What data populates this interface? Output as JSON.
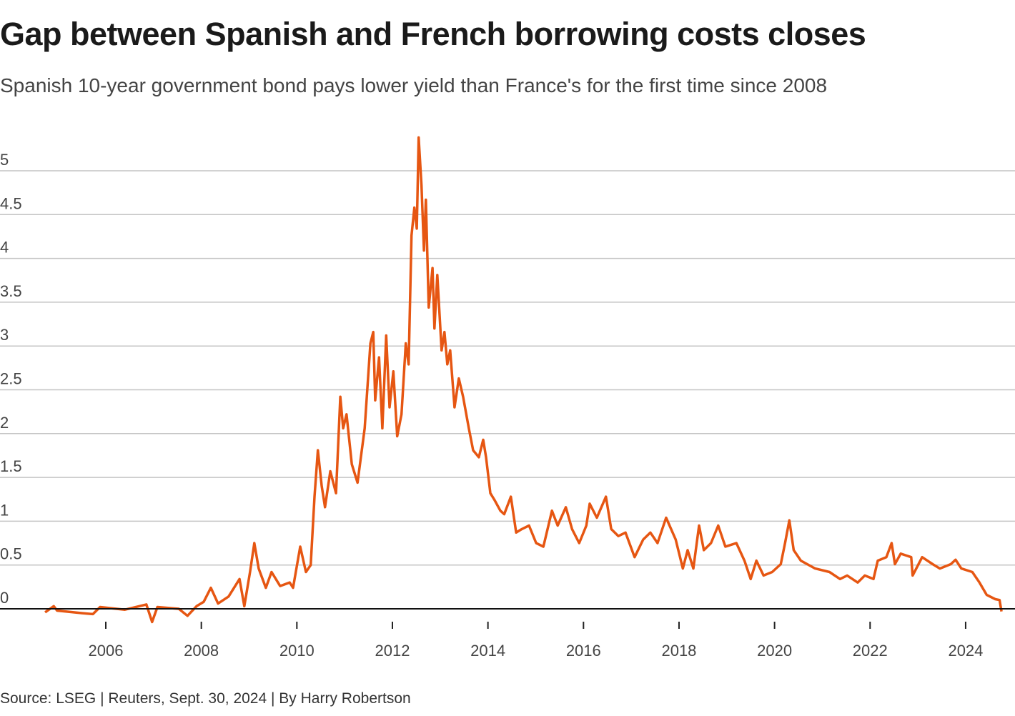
{
  "chart_data": {
    "type": "line",
    "title": "Gap between Spanish and French borrowing costs closes",
    "subtitle": "Spanish 10-year government bond pays lower yield than France's for the first time since 2008",
    "source": "Source: LSEG | Reuters, Sept. 30, 2024 | By Harry Robertson",
    "xlabel": "",
    "ylabel": "",
    "xlim": [
      2004.7,
      2024.8
    ],
    "ylim": [
      0,
      5.4
    ],
    "grid": true,
    "line_color": "#e65612",
    "y_ticks": [
      0,
      0.5,
      1,
      1.5,
      2,
      2.5,
      3,
      3.5,
      4,
      4.5,
      5
    ],
    "y_tick_labels": [
      "0",
      "0.5",
      "1",
      "1.5",
      "2",
      "2.5",
      "3",
      "3.5",
      "4",
      "4.5",
      "5"
    ],
    "x_ticks": [
      2006,
      2008,
      2010,
      2012,
      2014,
      2016,
      2018,
      2020,
      2022,
      2024
    ],
    "x_tick_labels": [
      "2006",
      "2008",
      "2010",
      "2012",
      "2014",
      "2016",
      "2018",
      "2020",
      "2022",
      "2024"
    ],
    "series": [
      {
        "points": [
          [
            2004.73,
            -0.04
          ],
          [
            2004.91,
            0.03
          ],
          [
            2004.98,
            -0.02
          ],
          [
            2005.51,
            -0.05
          ],
          [
            2005.73,
            -0.06
          ],
          [
            2005.88,
            0.02
          ],
          [
            2006.4,
            -0.01
          ],
          [
            2006.85,
            0.05
          ],
          [
            2006.97,
            -0.15
          ],
          [
            2007.08,
            0.02
          ],
          [
            2007.53,
            0
          ],
          [
            2007.71,
            -0.08
          ],
          [
            2007.9,
            0.03
          ],
          [
            2008.05,
            0.08
          ],
          [
            2008.2,
            0.24
          ],
          [
            2008.35,
            0.06
          ],
          [
            2008.57,
            0.14
          ],
          [
            2008.8,
            0.34
          ],
          [
            2008.9,
            0.03
          ],
          [
            2009.02,
            0.42
          ],
          [
            2009.11,
            0.75
          ],
          [
            2009.2,
            0.46
          ],
          [
            2009.35,
            0.24
          ],
          [
            2009.47,
            0.42
          ],
          [
            2009.65,
            0.26
          ],
          [
            2009.85,
            0.3
          ],
          [
            2009.92,
            0.24
          ],
          [
            2010.07,
            0.71
          ],
          [
            2010.19,
            0.42
          ],
          [
            2010.29,
            0.5
          ],
          [
            2010.37,
            1.28
          ],
          [
            2010.44,
            1.81
          ],
          [
            2010.52,
            1.4
          ],
          [
            2010.59,
            1.16
          ],
          [
            2010.7,
            1.57
          ],
          [
            2010.82,
            1.32
          ],
          [
            2010.91,
            2.42
          ],
          [
            2010.97,
            2.06
          ],
          [
            2011.04,
            2.22
          ],
          [
            2011.15,
            1.65
          ],
          [
            2011.27,
            1.44
          ],
          [
            2011.42,
            2.06
          ],
          [
            2011.54,
            3.03
          ],
          [
            2011.6,
            3.16
          ],
          [
            2011.64,
            2.38
          ],
          [
            2011.72,
            2.87
          ],
          [
            2011.79,
            2.06
          ],
          [
            2011.87,
            3.12
          ],
          [
            2011.94,
            2.3
          ],
          [
            2012.02,
            2.71
          ],
          [
            2012.1,
            1.97
          ],
          [
            2012.19,
            2.22
          ],
          [
            2012.28,
            3.03
          ],
          [
            2012.34,
            2.79
          ],
          [
            2012.4,
            4.26
          ],
          [
            2012.46,
            4.58
          ],
          [
            2012.51,
            4.34
          ],
          [
            2012.55,
            5.38
          ],
          [
            2012.61,
            4.83
          ],
          [
            2012.66,
            4.09
          ],
          [
            2012.7,
            4.67
          ],
          [
            2012.76,
            3.44
          ],
          [
            2012.84,
            3.89
          ],
          [
            2012.88,
            3.2
          ],
          [
            2012.94,
            3.81
          ],
          [
            2013.03,
            2.95
          ],
          [
            2013.09,
            3.16
          ],
          [
            2013.15,
            2.79
          ],
          [
            2013.21,
            2.95
          ],
          [
            2013.3,
            2.3
          ],
          [
            2013.39,
            2.63
          ],
          [
            2013.48,
            2.42
          ],
          [
            2013.6,
            2.06
          ],
          [
            2013.69,
            1.81
          ],
          [
            2013.81,
            1.73
          ],
          [
            2013.9,
            1.93
          ],
          [
            2013.96,
            1.73
          ],
          [
            2014.05,
            1.32
          ],
          [
            2014.14,
            1.24
          ],
          [
            2014.26,
            1.12
          ],
          [
            2014.34,
            1.08
          ],
          [
            2014.48,
            1.28
          ],
          [
            2014.59,
            0.87
          ],
          [
            2014.71,
            0.91
          ],
          [
            2014.86,
            0.95
          ],
          [
            2015.01,
            0.75
          ],
          [
            2015.16,
            0.71
          ],
          [
            2015.34,
            1.12
          ],
          [
            2015.46,
            0.95
          ],
          [
            2015.63,
            1.16
          ],
          [
            2015.76,
            0.91
          ],
          [
            2015.91,
            0.75
          ],
          [
            2016.06,
            0.95
          ],
          [
            2016.13,
            1.2
          ],
          [
            2016.28,
            1.04
          ],
          [
            2016.47,
            1.28
          ],
          [
            2016.58,
            0.91
          ],
          [
            2016.73,
            0.83
          ],
          [
            2016.88,
            0.87
          ],
          [
            2017.07,
            0.59
          ],
          [
            2017.25,
            0.79
          ],
          [
            2017.4,
            0.87
          ],
          [
            2017.55,
            0.75
          ],
          [
            2017.73,
            1.04
          ],
          [
            2017.93,
            0.79
          ],
          [
            2018.08,
            0.46
          ],
          [
            2018.18,
            0.67
          ],
          [
            2018.3,
            0.46
          ],
          [
            2018.42,
            0.95
          ],
          [
            2018.52,
            0.67
          ],
          [
            2018.67,
            0.75
          ],
          [
            2018.82,
            0.95
          ],
          [
            2018.97,
            0.71
          ],
          [
            2019.2,
            0.75
          ],
          [
            2019.37,
            0.55
          ],
          [
            2019.5,
            0.34
          ],
          [
            2019.62,
            0.55
          ],
          [
            2019.77,
            0.38
          ],
          [
            2019.95,
            0.42
          ],
          [
            2020.13,
            0.51
          ],
          [
            2020.22,
            0.75
          ],
          [
            2020.31,
            1.01
          ],
          [
            2020.4,
            0.67
          ],
          [
            2020.55,
            0.55
          ],
          [
            2020.85,
            0.46
          ],
          [
            2021.15,
            0.42
          ],
          [
            2021.37,
            0.34
          ],
          [
            2021.52,
            0.38
          ],
          [
            2021.74,
            0.3
          ],
          [
            2021.89,
            0.38
          ],
          [
            2022.07,
            0.34
          ],
          [
            2022.16,
            0.55
          ],
          [
            2022.34,
            0.59
          ],
          [
            2022.45,
            0.75
          ],
          [
            2022.52,
            0.51
          ],
          [
            2022.64,
            0.63
          ],
          [
            2022.86,
            0.59
          ],
          [
            2022.89,
            0.38
          ],
          [
            2023.09,
            0.59
          ],
          [
            2023.31,
            0.51
          ],
          [
            2023.46,
            0.46
          ],
          [
            2023.69,
            0.51
          ],
          [
            2023.79,
            0.56
          ],
          [
            2023.91,
            0.46
          ],
          [
            2024.14,
            0.42
          ],
          [
            2024.29,
            0.3
          ],
          [
            2024.44,
            0.16
          ],
          [
            2024.62,
            0.11
          ],
          [
            2024.71,
            0.1
          ],
          [
            2024.75,
            -0.03
          ]
        ]
      }
    ]
  }
}
